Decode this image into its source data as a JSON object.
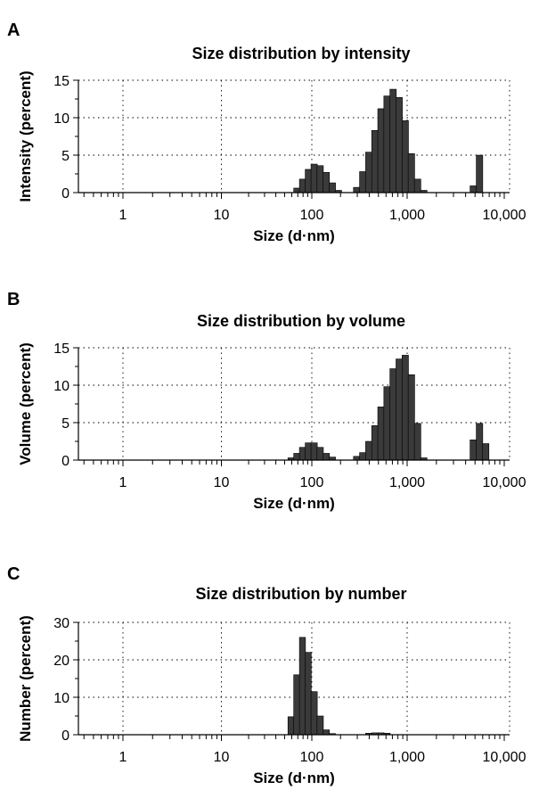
{
  "chart_data": [
    {
      "type": "bar",
      "panel": "A",
      "title": "Size distribution by intensity",
      "xlabel": "Size (d·nm)",
      "ylabel": "Intensity (percent)",
      "x_scale": "log",
      "xlim": [
        0.4,
        10000
      ],
      "ylim": [
        0,
        15
      ],
      "y_ticks": [
        "0",
        "5",
        "10",
        "15"
      ],
      "x_ticks": [
        "1",
        "10",
        "100",
        "1,000",
        "10,000"
      ],
      "grid": true,
      "bins": [
        {
          "x": 68.1,
          "y": 0.6
        },
        {
          "x": 78.8,
          "y": 1.8
        },
        {
          "x": 91.3,
          "y": 3.1
        },
        {
          "x": 105.7,
          "y": 3.8
        },
        {
          "x": 122.4,
          "y": 3.6
        },
        {
          "x": 141.8,
          "y": 2.7
        },
        {
          "x": 164.2,
          "y": 1.3
        },
        {
          "x": 190.1,
          "y": 0.3
        },
        {
          "x": 295.3,
          "y": 0.7
        },
        {
          "x": 342,
          "y": 2.8
        },
        {
          "x": 396.1,
          "y": 5.4
        },
        {
          "x": 458.7,
          "y": 8.3
        },
        {
          "x": 531.2,
          "y": 11.2
        },
        {
          "x": 615.1,
          "y": 12.9
        },
        {
          "x": 712.4,
          "y": 13.8
        },
        {
          "x": 825,
          "y": 12.7
        },
        {
          "x": 955.4,
          "y": 9.6
        },
        {
          "x": 1106,
          "y": 5.2
        },
        {
          "x": 1281,
          "y": 1.8
        },
        {
          "x": 1484,
          "y": 0.3
        },
        {
          "x": 4801,
          "y": 0.9
        },
        {
          "x": 5560,
          "y": 5.0
        }
      ]
    },
    {
      "type": "bar",
      "panel": "B",
      "title": "Size distribution by volume",
      "xlabel": "Size (d·nm)",
      "ylabel": "Volume (percent)",
      "x_scale": "log",
      "xlim": [
        0.4,
        10000
      ],
      "ylim": [
        0,
        15
      ],
      "y_ticks": [
        "0",
        "5",
        "10",
        "15"
      ],
      "x_ticks": [
        "1",
        "10",
        "100",
        "1,000",
        "10,000"
      ],
      "grid": true,
      "bins": [
        {
          "x": 58.8,
          "y": 0.3
        },
        {
          "x": 68.1,
          "y": 0.9
        },
        {
          "x": 78.8,
          "y": 1.7
        },
        {
          "x": 91.3,
          "y": 2.3
        },
        {
          "x": 105.7,
          "y": 2.3
        },
        {
          "x": 122.4,
          "y": 1.7
        },
        {
          "x": 141.8,
          "y": 0.9
        },
        {
          "x": 164.2,
          "y": 0.4
        },
        {
          "x": 295.3,
          "y": 0.5
        },
        {
          "x": 342,
          "y": 1.0
        },
        {
          "x": 396.1,
          "y": 2.5
        },
        {
          "x": 458.7,
          "y": 4.6
        },
        {
          "x": 531.2,
          "y": 7.1
        },
        {
          "x": 615.1,
          "y": 9.8
        },
        {
          "x": 712.4,
          "y": 12.2
        },
        {
          "x": 825,
          "y": 13.5
        },
        {
          "x": 955.4,
          "y": 14.0
        },
        {
          "x": 1106,
          "y": 11.4
        },
        {
          "x": 1281,
          "y": 4.9
        },
        {
          "x": 1484,
          "y": 0.3
        },
        {
          "x": 4801,
          "y": 2.7
        },
        {
          "x": 5560,
          "y": 4.9
        },
        {
          "x": 6439,
          "y": 2.2
        }
      ]
    },
    {
      "type": "bar",
      "panel": "C",
      "title": "Size distribution by number",
      "xlabel": "Size (d·nm)",
      "ylabel": "Number (percent)",
      "x_scale": "log",
      "xlim": [
        0.4,
        10000
      ],
      "ylim": [
        0,
        30
      ],
      "y_ticks": [
        "0",
        "10",
        "20",
        "30"
      ],
      "x_ticks": [
        "1",
        "10",
        "100",
        "1,000",
        "10,000"
      ],
      "grid": true,
      "bins": [
        {
          "x": 58.8,
          "y": 4.8
        },
        {
          "x": 68.1,
          "y": 16.0
        },
        {
          "x": 78.8,
          "y": 26.0
        },
        {
          "x": 91.3,
          "y": 22.0
        },
        {
          "x": 105.7,
          "y": 11.5
        },
        {
          "x": 122.4,
          "y": 5.0
        },
        {
          "x": 141.8,
          "y": 1.3
        },
        {
          "x": 164.2,
          "y": 0.3
        },
        {
          "x": 396.1,
          "y": 0.4
        },
        {
          "x": 458.7,
          "y": 0.5
        },
        {
          "x": 531.2,
          "y": 0.5
        },
        {
          "x": 615.1,
          "y": 0.4
        }
      ]
    }
  ]
}
